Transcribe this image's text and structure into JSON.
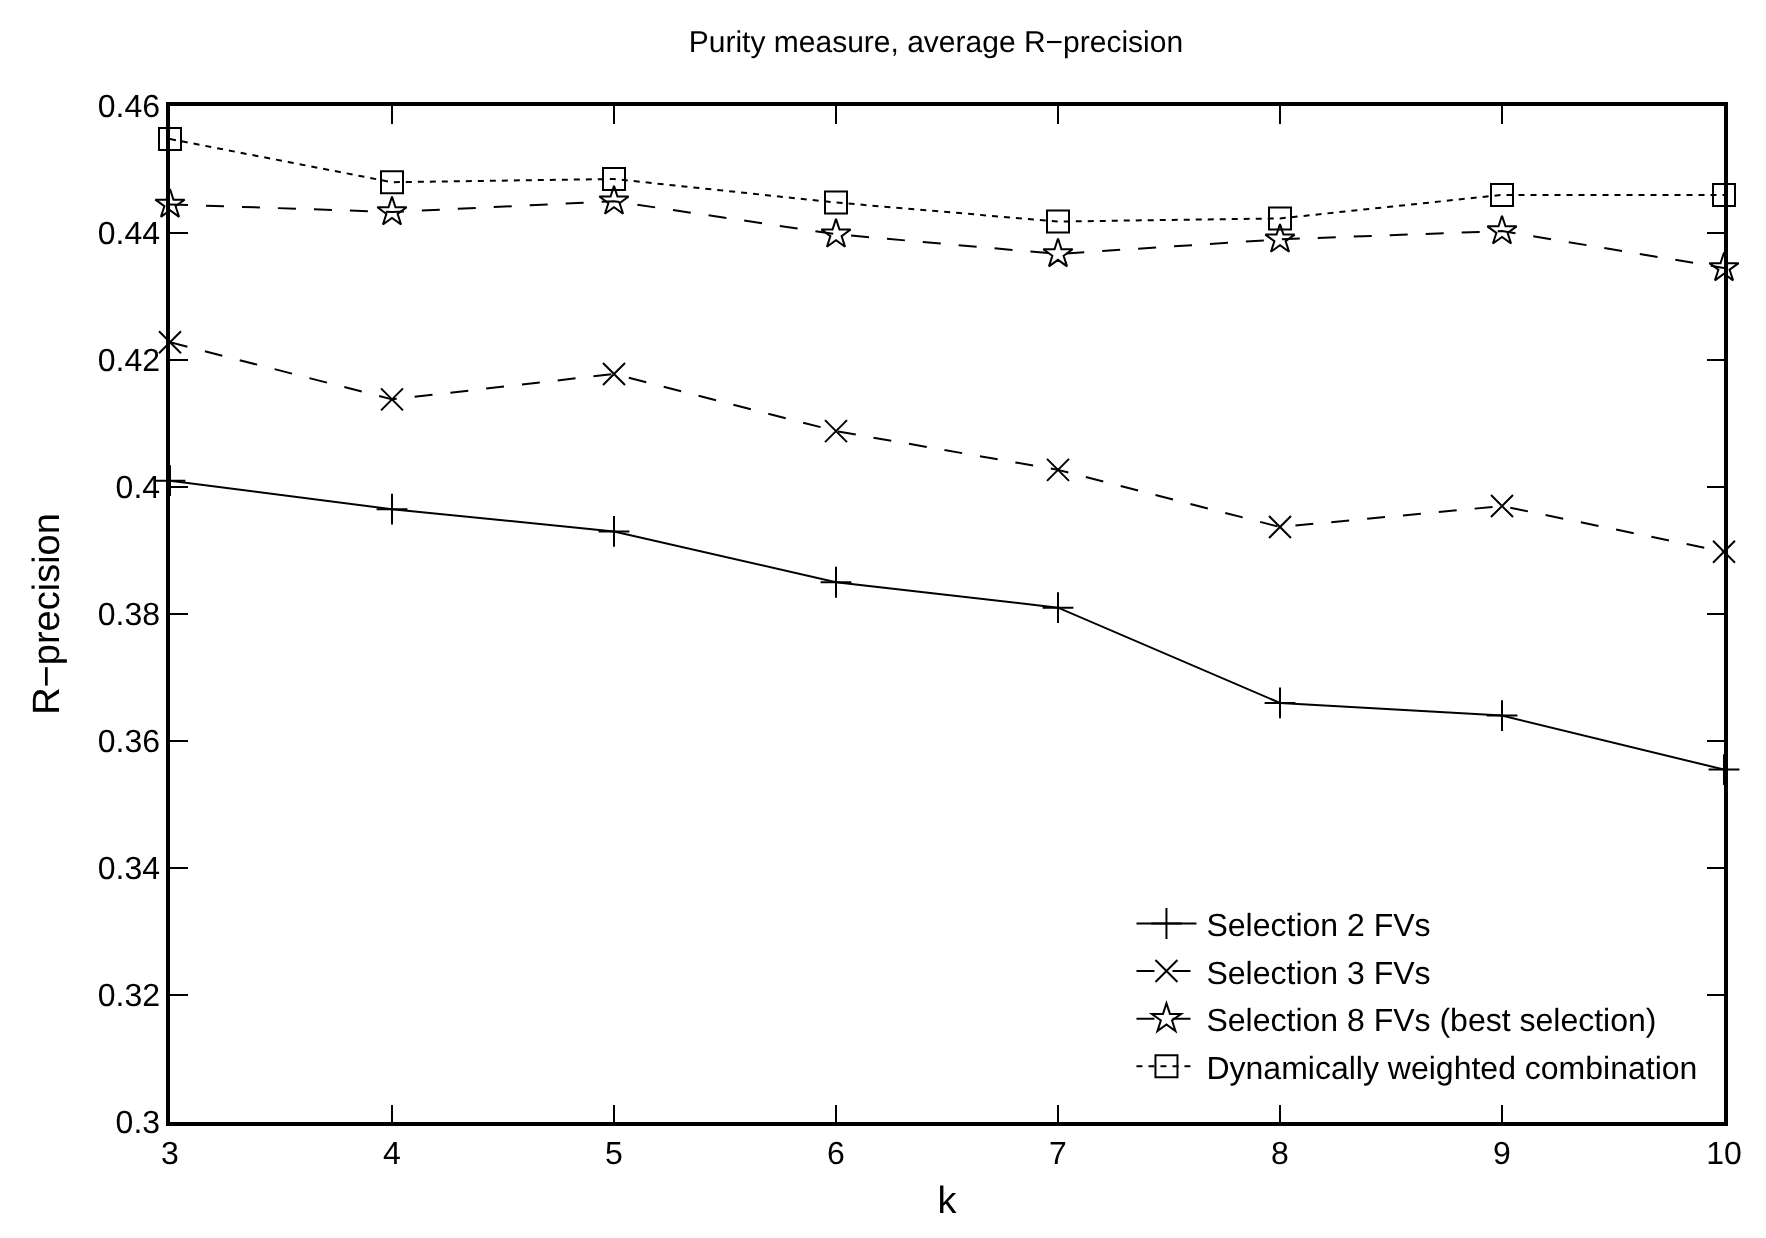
{
  "chart_data": {
    "type": "line",
    "title": "Purity measure, average R−precision",
    "xlabel": "k",
    "ylabel": "R−precision",
    "x": [
      3,
      4,
      5,
      6,
      7,
      8,
      9,
      10
    ],
    "series": [
      {
        "name": "Selection 2 FVs",
        "color": "#000000",
        "marker": "cross",
        "line_style": "solid",
        "values": [
          0.401,
          0.3965,
          0.393,
          0.385,
          0.381,
          0.366,
          0.364,
          0.3555
        ]
      },
      {
        "name": "Selection 3 FVs",
        "color": "#000000",
        "marker": "x",
        "line_style": "dashed",
        "values": [
          0.4228,
          0.4138,
          0.4178,
          0.4088,
          0.4027,
          0.3937,
          0.397,
          0.3898
        ]
      },
      {
        "name": "Selection 8 FVs (best selection)",
        "color": "#000000",
        "marker": "star",
        "line_style": "dashed",
        "values": [
          0.4445,
          0.4433,
          0.445,
          0.4398,
          0.4367,
          0.439,
          0.4403,
          0.4345
        ]
      },
      {
        "name": "Dynamically weighted combination",
        "color": "#000000",
        "marker": "square",
        "line_style": "dotted",
        "values": [
          0.4548,
          0.448,
          0.4485,
          0.4448,
          0.4418,
          0.4423,
          0.446,
          0.446
        ]
      }
    ],
    "xlim": [
      3,
      10
    ],
    "xticks": [
      3,
      4,
      5,
      6,
      7,
      8,
      9,
      10
    ],
    "ylim": [
      0.3,
      0.46
    ],
    "yticks": [
      {
        "value": 0.3,
        "label": "0.3"
      },
      0.32,
      0.34,
      0.36,
      0.38,
      {
        "value": 0.4,
        "label": "0.4"
      },
      0.42,
      0.44,
      0.46
    ],
    "grid": false,
    "legend": "bottom right"
  }
}
